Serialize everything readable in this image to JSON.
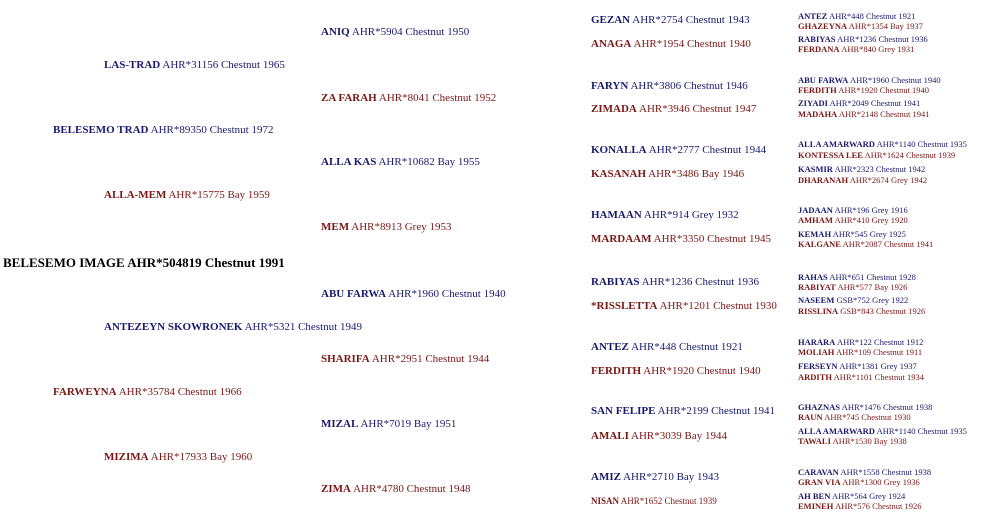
{
  "pedigree": {
    "root": {
      "name": "BELESEMO IMAGE",
      "reg": "AHR*504819 Chestnut 1991"
    },
    "gen1": [
      {
        "name": "BELESEMO TRAD",
        "reg": "AHR*89350 Chestnut 1972",
        "sex": "sire"
      },
      {
        "name": "FARWEYNA",
        "reg": "AHR*35784 Chestnut 1966",
        "sex": "dam"
      }
    ],
    "gen2": [
      {
        "name": "LAS-TRAD",
        "reg": "AHR*31156 Chestnut 1965",
        "sex": "sire"
      },
      {
        "name": "ALLA-MEM",
        "reg": "AHR*15775 Bay 1959",
        "sex": "dam"
      },
      {
        "name": "ANTEZEYN SKOWRONEK",
        "reg": "AHR*5321 Chestnut 1949",
        "sex": "sire"
      },
      {
        "name": "MIZIMA",
        "reg": "AHR*17933 Bay 1960",
        "sex": "dam"
      }
    ],
    "gen3": [
      {
        "name": "ANIQ",
        "reg": "AHR*5904 Chestnut 1950",
        "sex": "sire"
      },
      {
        "name": "ZA FARAH",
        "reg": "AHR*8041 Chestnut 1952",
        "sex": "dam"
      },
      {
        "name": "ALLA KAS",
        "reg": "AHR*10682 Bay 1955",
        "sex": "sire"
      },
      {
        "name": "MEM",
        "reg": "AHR*8913 Grey 1953",
        "sex": "dam"
      },
      {
        "name": "ABU FARWA",
        "reg": "AHR*1960 Chestnut 1940",
        "sex": "sire"
      },
      {
        "name": "SHARIFA",
        "reg": "AHR*2951 Chestnut 1944",
        "sex": "dam"
      },
      {
        "name": "MIZAL",
        "reg": "AHR*7019 Bay 1951",
        "sex": "sire"
      },
      {
        "name": "ZIMA",
        "reg": "AHR*4780 Chestnut 1948",
        "sex": "dam"
      }
    ],
    "gen4": [
      {
        "name": "GEZAN",
        "reg": "AHR*2754 Chestnut 1943",
        "sex": "sire"
      },
      {
        "name": "ANAGA",
        "reg": "AHR*1954 Chestnut 1940",
        "sex": "dam"
      },
      {
        "name": "FARYN",
        "reg": "AHR*3806 Chestnut 1946",
        "sex": "sire"
      },
      {
        "name": "ZIMADA",
        "reg": "AHR*3946 Chestnut 1947",
        "sex": "dam"
      },
      {
        "name": "KONALLA",
        "reg": "AHR*2777 Chestnut 1944",
        "sex": "sire"
      },
      {
        "name": "KASANAH",
        "reg": "AHR*3486 Bay 1946",
        "sex": "dam"
      },
      {
        "name": "HAMAAN",
        "reg": "AHR*914 Grey 1932",
        "sex": "sire"
      },
      {
        "name": "MARDAAM",
        "reg": "AHR*3350 Chestnut 1945",
        "sex": "dam"
      },
      {
        "name": "RABIYAS",
        "reg": "AHR*1236 Chestnut 1936",
        "sex": "sire"
      },
      {
        "name": "*RISSLETTA",
        "reg": "AHR*1201 Chestnut 1930",
        "sex": "dam"
      },
      {
        "name": "ANTEZ",
        "reg": "AHR*448 Chestnut 1921",
        "sex": "sire"
      },
      {
        "name": "FERDITH",
        "reg": "AHR*1920 Chestnut 1940",
        "sex": "dam"
      },
      {
        "name": "SAN FELIPE",
        "reg": "AHR*2199 Chestnut 1941",
        "sex": "sire"
      },
      {
        "name": "AMALI",
        "reg": "AHR*3039 Bay 1944",
        "sex": "dam"
      },
      {
        "name": "AMIZ",
        "reg": "AHR*2710 Bay 1943",
        "sex": "sire"
      },
      {
        "name": "NISAN",
        "reg": "AHR*1652 Chestnut 1939",
        "sex": "dam"
      }
    ],
    "gen5": [
      {
        "name": "ANTEZ",
        "reg": "AHR*448 Chestnut 1921",
        "sex": "sire"
      },
      {
        "name": "GHAZEYNA",
        "reg": "AHR*1354 Bay 1937",
        "sex": "dam"
      },
      {
        "name": "RABIYAS",
        "reg": "AHR*1236 Chestnut 1936",
        "sex": "sire"
      },
      {
        "name": "FERDANA",
        "reg": "AHR*840 Grey 1931",
        "sex": "dam"
      },
      {
        "name": "ABU FARWA",
        "reg": "AHR*1960 Chestnut 1940",
        "sex": "sire"
      },
      {
        "name": "FERDITH",
        "reg": "AHR*1920 Chestnut 1940",
        "sex": "dam"
      },
      {
        "name": "ZIYADI",
        "reg": "AHR*2049 Chestnut 1941",
        "sex": "sire"
      },
      {
        "name": "MADAHA",
        "reg": "AHR*2148 Chestnut 1941",
        "sex": "dam"
      },
      {
        "name": "ALLA AMARWARD",
        "reg": "AHR*1140 Chestnut 1935",
        "sex": "sire"
      },
      {
        "name": "KONTESSA LEE",
        "reg": "AHR*1624 Chestnut 1939",
        "sex": "dam"
      },
      {
        "name": "KASMIR",
        "reg": "AHR*2323 Chestnut 1942",
        "sex": "sire"
      },
      {
        "name": "DHARANAH",
        "reg": "AHR*2674 Grey 1942",
        "sex": "dam"
      },
      {
        "name": "JADAAN",
        "reg": "AHR*196 Grey 1916",
        "sex": "sire"
      },
      {
        "name": "AMHAM",
        "reg": "AHR*410 Grey 1920",
        "sex": "dam"
      },
      {
        "name": "KEMAH",
        "reg": "AHR*545 Grey 1925",
        "sex": "sire"
      },
      {
        "name": "KALGANE",
        "reg": "AHR*2087 Chestnut 1941",
        "sex": "dam"
      },
      {
        "name": "RAHAS",
        "reg": "AHR*651 Chestnut 1928",
        "sex": "sire"
      },
      {
        "name": "RABIYAT",
        "reg": "AHR*577 Bay 1926",
        "sex": "dam"
      },
      {
        "name": "NASEEM",
        "reg": "GSB*752 Grey 1922",
        "sex": "sire"
      },
      {
        "name": "RISSLINA",
        "reg": "GSB*843 Chestnut 1926",
        "sex": "dam"
      },
      {
        "name": "HARARA",
        "reg": "AHR*122 Chestnut 1912",
        "sex": "sire"
      },
      {
        "name": "MOLIAH",
        "reg": "AHR*109 Chestnut 1911",
        "sex": "dam"
      },
      {
        "name": "FERSEYN",
        "reg": "AHR*1381 Grey 1937",
        "sex": "sire"
      },
      {
        "name": "ARDITH",
        "reg": "AHR*1101 Chestnut 1934",
        "sex": "dam"
      },
      {
        "name": "GHAZNAS",
        "reg": "AHR*1476 Chestnut 1938",
        "sex": "sire"
      },
      {
        "name": "RAUN",
        "reg": "AHR*745 Chestnut 1930",
        "sex": "dam"
      },
      {
        "name": "ALLA AMARWARD",
        "reg": "AHR*1140 Chestnut 1935",
        "sex": "sire"
      },
      {
        "name": "TAWALI",
        "reg": "AHR*1530 Bay 1938",
        "sex": "dam"
      },
      {
        "name": "CARAVAN",
        "reg": "AHR*1558 Chestnut 1938",
        "sex": "sire"
      },
      {
        "name": "GRAN VIA",
        "reg": "AHR*1300 Grey 1936",
        "sex": "dam"
      },
      {
        "name": "AH BEN",
        "reg": "AHR*564 Grey 1924",
        "sex": "sire"
      },
      {
        "name": "EMINEH",
        "reg": "AHR*576 Chestnut 1926",
        "sex": "dam"
      }
    ]
  },
  "colors": {
    "sire": "#1a1a6e",
    "dam": "#7a1616",
    "root": "#000000"
  }
}
